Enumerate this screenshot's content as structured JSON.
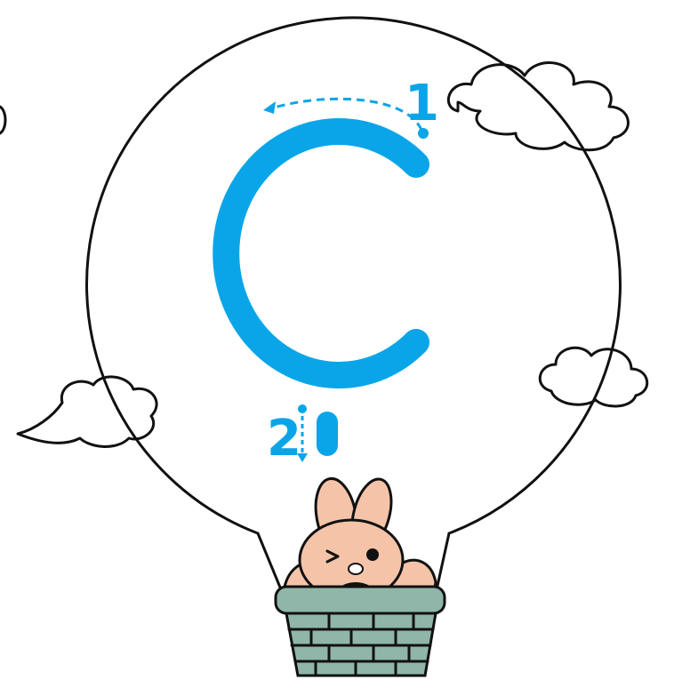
{
  "steps": [
    {
      "label": "1"
    },
    {
      "label": "2"
    }
  ]
}
